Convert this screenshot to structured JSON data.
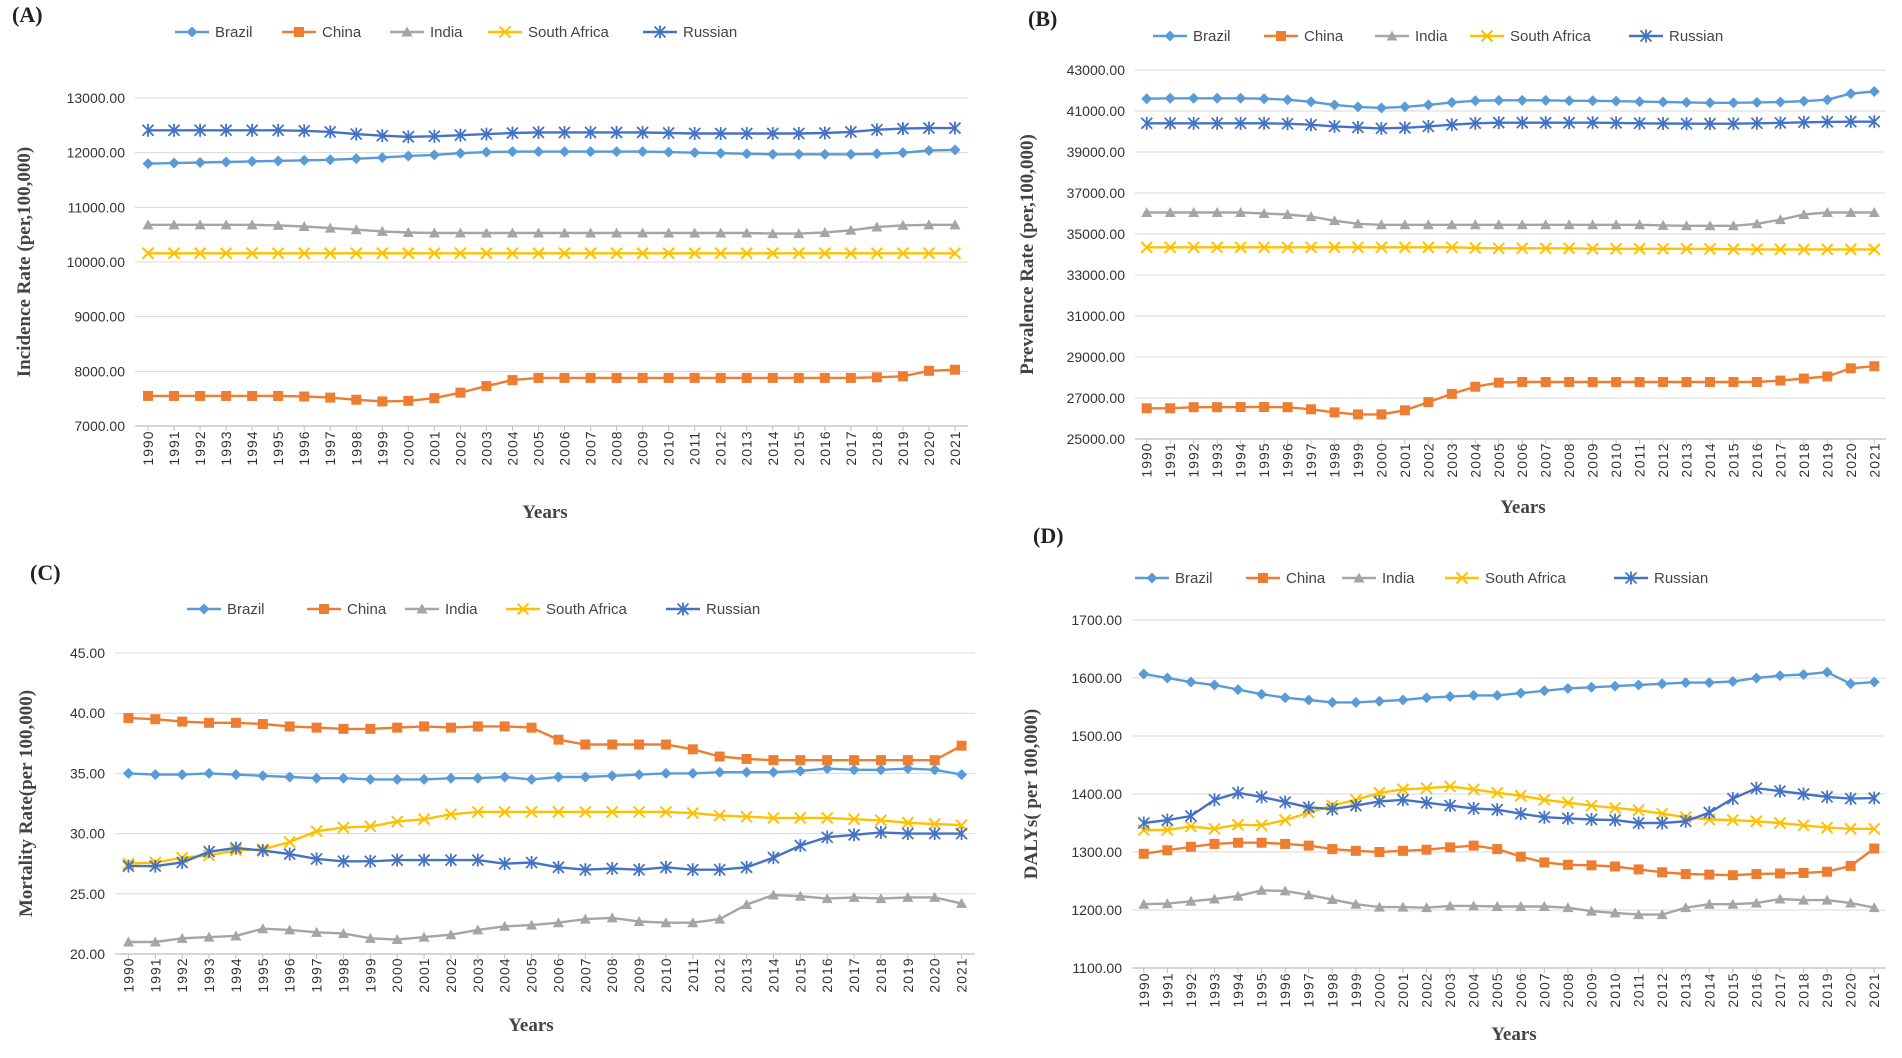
{
  "chart_data": [
    {
      "panel": "(A)",
      "type": "line",
      "xlabel": "Years",
      "ylabel": "Incidence Rate (per,100,000)",
      "ylim": [
        7000,
        13000
      ],
      "yticks": [
        "7000.00",
        "8000.00",
        "9000.00",
        "10000.00",
        "11000.00",
        "12000.00",
        "13000.00"
      ],
      "x": [
        "1990",
        "1991",
        "1992",
        "1993",
        "1994",
        "1995",
        "1996",
        "1997",
        "1998",
        "1999",
        "2000",
        "2001",
        "2002",
        "2003",
        "2004",
        "2005",
        "2006",
        "2007",
        "2008",
        "2009",
        "2010",
        "2011",
        "2012",
        "2013",
        "2014",
        "2015",
        "2016",
        "2017",
        "2018",
        "2019",
        "2020",
        "2021"
      ],
      "series": [
        {
          "name": "Brazil",
          "values": [
            11800,
            11810,
            11820,
            11830,
            11840,
            11850,
            11860,
            11870,
            11890,
            11910,
            11940,
            11960,
            11990,
            12010,
            12020,
            12020,
            12020,
            12020,
            12020,
            12020,
            12010,
            12000,
            11990,
            11980,
            11970,
            11970,
            11970,
            11970,
            11980,
            12000,
            12040,
            12050
          ]
        },
        {
          "name": "China",
          "values": [
            7550,
            7550,
            7550,
            7550,
            7550,
            7550,
            7540,
            7520,
            7480,
            7450,
            7460,
            7510,
            7610,
            7730,
            7840,
            7880,
            7880,
            7880,
            7880,
            7880,
            7880,
            7880,
            7880,
            7880,
            7880,
            7880,
            7880,
            7880,
            7890,
            7910,
            8010,
            8030
          ]
        },
        {
          "name": "India",
          "values": [
            10680,
            10680,
            10680,
            10680,
            10680,
            10670,
            10650,
            10620,
            10590,
            10560,
            10540,
            10530,
            10530,
            10530,
            10530,
            10530,
            10530,
            10530,
            10530,
            10530,
            10530,
            10530,
            10530,
            10530,
            10520,
            10520,
            10540,
            10580,
            10640,
            10670,
            10680,
            10680
          ]
        },
        {
          "name": "South Africa",
          "values": [
            10160,
            10160,
            10160,
            10160,
            10160,
            10160,
            10160,
            10160,
            10160,
            10160,
            10160,
            10160,
            10160,
            10160,
            10160,
            10160,
            10160,
            10160,
            10160,
            10160,
            10160,
            10160,
            10160,
            10160,
            10160,
            10160,
            10160,
            10160,
            10160,
            10160,
            10160,
            10160
          ]
        },
        {
          "name": "Russian",
          "values": [
            12410,
            12410,
            12410,
            12410,
            12410,
            12410,
            12400,
            12380,
            12340,
            12310,
            12290,
            12300,
            12320,
            12340,
            12360,
            12370,
            12370,
            12370,
            12370,
            12370,
            12360,
            12350,
            12350,
            12350,
            12350,
            12350,
            12360,
            12380,
            12420,
            12440,
            12450,
            12450
          ]
        }
      ]
    },
    {
      "panel": "(B)",
      "type": "line",
      "xlabel": "Years",
      "ylabel": "Prevalence Rate (per,100,000)",
      "ylim": [
        25000,
        43000
      ],
      "yticks": [
        "25000.00",
        "27000.00",
        "29000.00",
        "31000.00",
        "33000.00",
        "35000.00",
        "37000.00",
        "39000.00",
        "41000.00",
        "43000.00"
      ],
      "x": [
        "1990",
        "1991",
        "1992",
        "1993",
        "1994",
        "1995",
        "1996",
        "1997",
        "1998",
        "1999",
        "2000",
        "2001",
        "2002",
        "2003",
        "2004",
        "2005",
        "2006",
        "2007",
        "2008",
        "2009",
        "2010",
        "2011",
        "2012",
        "2013",
        "2014",
        "2015",
        "2016",
        "2017",
        "2018",
        "2019",
        "2020",
        "2021"
      ],
      "series": [
        {
          "name": "Brazil",
          "values": [
            41600,
            41620,
            41620,
            41620,
            41620,
            41600,
            41550,
            41450,
            41300,
            41200,
            41150,
            41200,
            41300,
            41420,
            41500,
            41520,
            41520,
            41520,
            41500,
            41500,
            41480,
            41460,
            41440,
            41420,
            41400,
            41400,
            41420,
            41440,
            41480,
            41550,
            41850,
            41950
          ]
        },
        {
          "name": "China",
          "values": [
            26500,
            26500,
            26550,
            26550,
            26560,
            26560,
            26550,
            26450,
            26300,
            26200,
            26200,
            26400,
            26800,
            27200,
            27550,
            27750,
            27780,
            27780,
            27780,
            27780,
            27780,
            27780,
            27780,
            27780,
            27780,
            27780,
            27780,
            27850,
            27950,
            28050,
            28450,
            28550
          ]
        },
        {
          "name": "India",
          "values": [
            36050,
            36050,
            36050,
            36050,
            36050,
            36000,
            35950,
            35850,
            35650,
            35500,
            35450,
            35450,
            35450,
            35450,
            35450,
            35450,
            35450,
            35450,
            35450,
            35450,
            35450,
            35450,
            35420,
            35400,
            35400,
            35400,
            35500,
            35700,
            35950,
            36050,
            36050,
            36050
          ]
        },
        {
          "name": "South Africa",
          "values": [
            34350,
            34350,
            34350,
            34350,
            34350,
            34350,
            34350,
            34350,
            34350,
            34350,
            34350,
            34350,
            34350,
            34350,
            34320,
            34300,
            34300,
            34300,
            34300,
            34280,
            34280,
            34280,
            34280,
            34280,
            34270,
            34260,
            34250,
            34250,
            34250,
            34250,
            34250,
            34250
          ]
        },
        {
          "name": "Russian",
          "values": [
            40400,
            40400,
            40400,
            40400,
            40400,
            40400,
            40380,
            40330,
            40250,
            40200,
            40150,
            40180,
            40250,
            40330,
            40400,
            40430,
            40430,
            40430,
            40430,
            40430,
            40420,
            40400,
            40390,
            40380,
            40380,
            40380,
            40400,
            40420,
            40450,
            40470,
            40480,
            40480
          ]
        }
      ]
    },
    {
      "panel": "(C)",
      "type": "line",
      "xlabel": "Years",
      "ylabel": "Mortality Rate(per 100,000)",
      "ylim": [
        20,
        45
      ],
      "yticks": [
        "20.00",
        "25.00",
        "30.00",
        "35.00",
        "40.00",
        "45.00"
      ],
      "x": [
        "1990",
        "1991",
        "1992",
        "1993",
        "1994",
        "1995",
        "1996",
        "1997",
        "1998",
        "1999",
        "2000",
        "2001",
        "2002",
        "2003",
        "2004",
        "2005",
        "2006",
        "2007",
        "2008",
        "2009",
        "2010",
        "2011",
        "2012",
        "2013",
        "2014",
        "2015",
        "2016",
        "2017",
        "2018",
        "2019",
        "2020",
        "2021"
      ],
      "series": [
        {
          "name": "Brazil",
          "values": [
            35.0,
            34.9,
            34.9,
            35.0,
            34.9,
            34.8,
            34.7,
            34.6,
            34.6,
            34.5,
            34.5,
            34.5,
            34.6,
            34.6,
            34.7,
            34.5,
            34.7,
            34.7,
            34.8,
            34.9,
            35.0,
            35.0,
            35.1,
            35.1,
            35.1,
            35.2,
            35.4,
            35.3,
            35.3,
            35.4,
            35.3,
            34.9
          ]
        },
        {
          "name": "China",
          "values": [
            39.6,
            39.5,
            39.3,
            39.2,
            39.2,
            39.1,
            38.9,
            38.8,
            38.7,
            38.7,
            38.8,
            38.9,
            38.8,
            38.9,
            38.9,
            38.8,
            37.8,
            37.4,
            37.4,
            37.4,
            37.4,
            37.0,
            36.4,
            36.2,
            36.1,
            36.1,
            36.1,
            36.1,
            36.1,
            36.1,
            36.1,
            37.3
          ]
        },
        {
          "name": "India",
          "values": [
            21.0,
            21.0,
            21.3,
            21.4,
            21.5,
            22.1,
            22.0,
            21.8,
            21.7,
            21.3,
            21.2,
            21.4,
            21.6,
            22.0,
            22.3,
            22.4,
            22.6,
            22.9,
            23.0,
            22.7,
            22.6,
            22.6,
            22.9,
            24.1,
            24.9,
            24.8,
            24.6,
            24.7,
            24.6,
            24.7,
            24.7,
            24.2
          ]
        },
        {
          "name": "South Africa",
          "values": [
            27.5,
            27.6,
            28.0,
            28.2,
            28.6,
            28.7,
            29.3,
            30.2,
            30.5,
            30.6,
            31.0,
            31.2,
            31.6,
            31.8,
            31.8,
            31.8,
            31.8,
            31.8,
            31.8,
            31.8,
            31.8,
            31.7,
            31.5,
            31.4,
            31.3,
            31.3,
            31.3,
            31.2,
            31.1,
            30.9,
            30.8,
            30.7
          ]
        },
        {
          "name": "Russian",
          "values": [
            27.3,
            27.3,
            27.6,
            28.5,
            28.8,
            28.6,
            28.3,
            27.9,
            27.7,
            27.7,
            27.8,
            27.8,
            27.8,
            27.8,
            27.5,
            27.6,
            27.2,
            27.0,
            27.1,
            27.0,
            27.2,
            27.0,
            27.0,
            27.2,
            28.0,
            29.0,
            29.7,
            29.9,
            30.1,
            30.0,
            30.0,
            30.0
          ]
        }
      ]
    },
    {
      "panel": "(D)",
      "type": "line",
      "xlabel": "Years",
      "ylabel": "DALYs( per 100,000)",
      "ylim": [
        1100,
        1700
      ],
      "yticks": [
        "1100.00",
        "1200.00",
        "1300.00",
        "1400.00",
        "1500.00",
        "1600.00",
        "1700.00"
      ],
      "x": [
        "1990",
        "1991",
        "1992",
        "1993",
        "1994",
        "1995",
        "1996",
        "1997",
        "1998",
        "1999",
        "2000",
        "2001",
        "2002",
        "2003",
        "2004",
        "2005",
        "2006",
        "2007",
        "2008",
        "2009",
        "2010",
        "2011",
        "2012",
        "2013",
        "2014",
        "2015",
        "2016",
        "2017",
        "2018",
        "2019",
        "2020",
        "2021"
      ],
      "series": [
        {
          "name": "Brazil",
          "values": [
            1607,
            1600,
            1593,
            1588,
            1580,
            1572,
            1566,
            1562,
            1558,
            1558,
            1560,
            1562,
            1566,
            1568,
            1570,
            1570,
            1574,
            1578,
            1582,
            1584,
            1586,
            1588,
            1590,
            1592,
            1592,
            1594,
            1600,
            1604,
            1606,
            1610,
            1590,
            1593
          ]
        },
        {
          "name": "China",
          "values": [
            1297,
            1303,
            1309,
            1314,
            1316,
            1316,
            1314,
            1311,
            1305,
            1302,
            1300,
            1302,
            1304,
            1308,
            1311,
            1305,
            1292,
            1282,
            1278,
            1277,
            1275,
            1270,
            1265,
            1262,
            1261,
            1260,
            1262,
            1263,
            1264,
            1266,
            1276,
            1306
          ]
        },
        {
          "name": "India",
          "values": [
            1210,
            1211,
            1215,
            1219,
            1224,
            1234,
            1233,
            1226,
            1218,
            1210,
            1205,
            1205,
            1204,
            1207,
            1207,
            1206,
            1206,
            1206,
            1204,
            1198,
            1195,
            1192,
            1192,
            1204,
            1210,
            1210,
            1212,
            1219,
            1217,
            1217,
            1212,
            1204
          ]
        },
        {
          "name": "South Africa",
          "values": [
            1338,
            1338,
            1344,
            1340,
            1347,
            1346,
            1355,
            1368,
            1380,
            1390,
            1402,
            1408,
            1410,
            1413,
            1408,
            1402,
            1397,
            1390,
            1385,
            1380,
            1376,
            1372,
            1366,
            1360,
            1356,
            1355,
            1353,
            1350,
            1346,
            1342,
            1340,
            1340
          ]
        },
        {
          "name": "Russian",
          "values": [
            1350,
            1355,
            1362,
            1390,
            1402,
            1395,
            1386,
            1377,
            1374,
            1380,
            1387,
            1390,
            1385,
            1380,
            1375,
            1373,
            1366,
            1360,
            1358,
            1356,
            1355,
            1350,
            1350,
            1353,
            1368,
            1392,
            1410,
            1405,
            1400,
            1395,
            1392,
            1393
          ]
        }
      ]
    }
  ],
  "legend": {
    "series": [
      "Brazil",
      "China",
      "India",
      "South Africa",
      "Russian"
    ],
    "colors": [
      "#5b9bd5",
      "#ed7d31",
      "#a5a5a5",
      "#ffc000",
      "#4472c4"
    ],
    "markers": [
      "diamond",
      "square",
      "triangle",
      "x",
      "asterisk"
    ]
  },
  "styles": {
    "gridline": "#d9d9d9",
    "axis": "#bfbfbf"
  }
}
